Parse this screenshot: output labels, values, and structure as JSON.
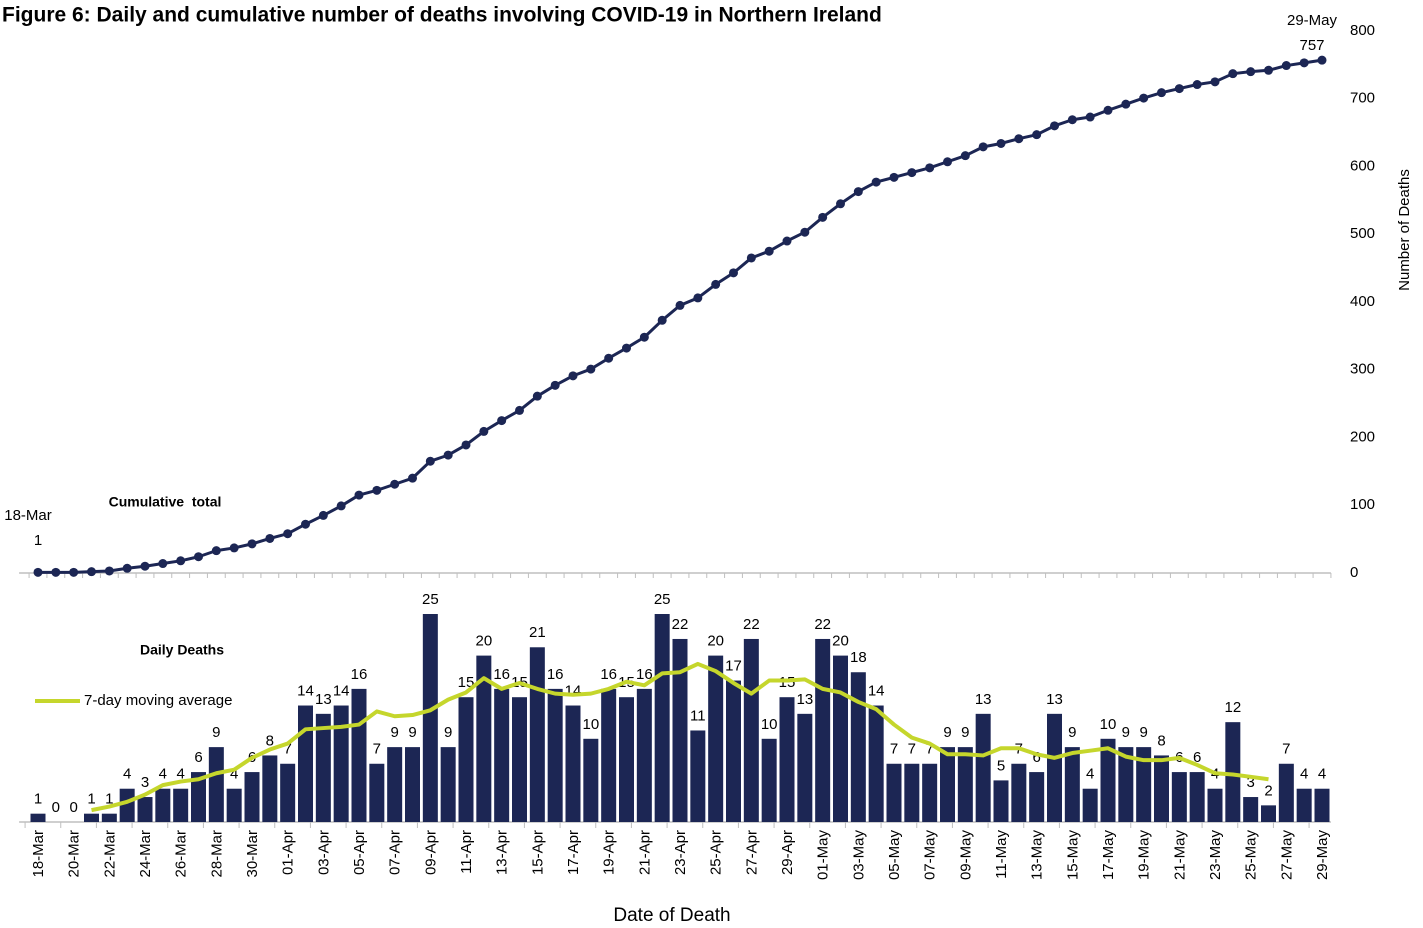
{
  "chart_data": {
    "type": "bar",
    "title": "Figure 6: Daily and cumulative number of deaths involving COVID-19 in Northern Ireland",
    "xlabel": "Date of Death",
    "y2label": "Number of Deaths",
    "categories": [
      "18-Mar",
      null,
      "20-Mar",
      null,
      "22-Mar",
      null,
      "24-Mar",
      null,
      "26-Mar",
      null,
      "28-Mar",
      null,
      "30-Mar",
      null,
      "01-Apr",
      null,
      "03-Apr",
      null,
      "05-Apr",
      null,
      "07-Apr",
      null,
      "09-Apr",
      null,
      "11-Apr",
      null,
      "13-Apr",
      null,
      "15-Apr",
      null,
      "17-Apr",
      null,
      "19-Apr",
      null,
      "21-Apr",
      null,
      "23-Apr",
      null,
      "25-Apr",
      null,
      "27-Apr",
      null,
      "29-Apr",
      null,
      "01-May",
      null,
      "03-May",
      null,
      "05-May",
      null,
      "07-May",
      null,
      "09-May",
      null,
      "11-May",
      null,
      "13-May",
      null,
      "15-May",
      null,
      "17-May",
      null,
      "19-May",
      null,
      "21-May",
      null,
      "23-May",
      null,
      "25-May",
      null,
      "27-May",
      null,
      "29-May"
    ],
    "series": [
      {
        "name": "Daily Deaths",
        "type": "bar",
        "color": "#1c2654",
        "values": [
          1,
          0,
          0,
          1,
          1,
          4,
          3,
          4,
          4,
          6,
          9,
          4,
          6,
          8,
          7,
          14,
          13,
          14,
          16,
          7,
          9,
          9,
          25,
          9,
          15,
          20,
          16,
          15,
          21,
          16,
          14,
          10,
          16,
          15,
          16,
          25,
          22,
          11,
          20,
          17,
          22,
          10,
          15,
          13,
          22,
          20,
          18,
          14,
          7,
          7,
          7,
          9,
          9,
          13,
          5,
          7,
          6,
          13,
          9,
          4,
          10,
          9,
          9,
          8,
          6,
          6,
          4,
          12,
          3,
          2,
          7,
          4,
          4
        ]
      },
      {
        "name": "7-day moving average",
        "type": "line",
        "color": "#c5d62c",
        "values": [
          null,
          null,
          null,
          1.43,
          1.86,
          2.43,
          3.29,
          4.43,
          4.86,
          5.14,
          5.86,
          6.29,
          7.71,
          8.71,
          9.43,
          11.14,
          11.29,
          11.43,
          11.71,
          13.29,
          12.71,
          12.86,
          13.43,
          14.71,
          15.57,
          17.29,
          16,
          16.71,
          16,
          15.43,
          15.29,
          15.43,
          16,
          16.86,
          16.43,
          17.86,
          18,
          19,
          18.14,
          16.71,
          15.43,
          17,
          17,
          17.14,
          16,
          15.57,
          14.43,
          13.57,
          11.71,
          10.14,
          9.43,
          8.14,
          8.14,
          8,
          8.86,
          8.86,
          8.14,
          7.71,
          8.29,
          8.57,
          8.86,
          7.86,
          7.43,
          7.43,
          7.71,
          6.86,
          5.86,
          5.71,
          5.43,
          5.14,
          null,
          null,
          null
        ]
      },
      {
        "name": "Cumulative  total",
        "type": "line",
        "axis": "y2",
        "color": "#1c2654",
        "values": [
          1,
          1,
          1,
          2,
          3,
          7,
          10,
          14,
          18,
          24,
          33,
          37,
          43,
          51,
          58,
          72,
          85,
          99,
          115,
          122,
          131,
          140,
          165,
          174,
          189,
          209,
          225,
          240,
          261,
          277,
          291,
          301,
          317,
          332,
          348,
          373,
          395,
          406,
          426,
          443,
          465,
          475,
          490,
          503,
          525,
          545,
          563,
          577,
          584,
          591,
          598,
          607,
          616,
          629,
          634,
          641,
          647,
          660,
          669,
          673,
          683,
          692,
          701,
          709,
          715,
          721,
          725,
          737,
          740,
          742,
          749,
          753,
          757
        ]
      }
    ],
    "ylim": [
      0,
      25
    ],
    "y2lim": [
      0,
      800
    ],
    "y2ticks": [
      0,
      100,
      200,
      300,
      400,
      500,
      600,
      700,
      800
    ]
  }
}
